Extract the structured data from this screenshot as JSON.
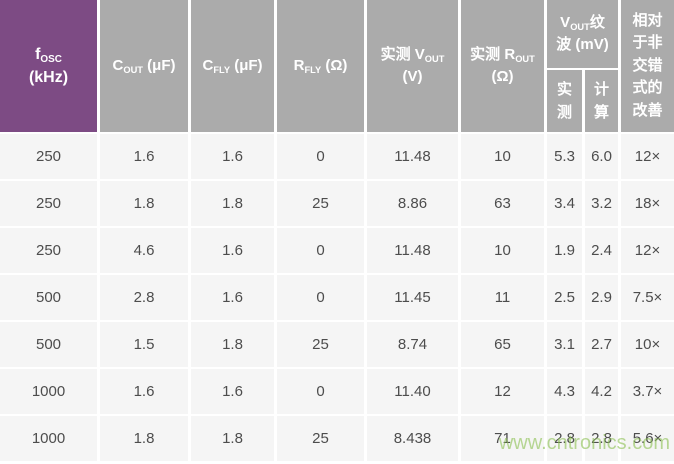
{
  "table": {
    "header": {
      "col_fosc": {
        "symbol": "f",
        "subscript": "OSC",
        "line2": "(kHz)"
      },
      "col_cout": {
        "symbol": "C",
        "subscript": "OUT",
        "unit": " (μF)"
      },
      "col_cfly": {
        "symbol": "C",
        "subscript": "FLY",
        "unit": " (μF)"
      },
      "col_rfly": {
        "symbol": "R",
        "subscript": "FLY",
        "unit": " (Ω)"
      },
      "col_vout": {
        "prefix": "实测 ",
        "symbol": "V",
        "subscript": "OUT",
        "line2": "(V)"
      },
      "col_rout": {
        "prefix": "实测 ",
        "symbol": "R",
        "subscript": "OUT",
        "line2": "(Ω)"
      },
      "col_ripple": {
        "symbol": "V",
        "subscript": "OUT",
        "line1_suffix": "纹",
        "line2": "波 (mV)"
      },
      "sub_measured": "实测",
      "sub_calculated": "计算",
      "col_improvement": "相对于非交错式的改善"
    },
    "rows": [
      [
        "250",
        "1.6",
        "1.6",
        "0",
        "11.48",
        "10",
        "5.3",
        "6.0",
        "12×"
      ],
      [
        "250",
        "1.8",
        "1.8",
        "25",
        "8.86",
        "63",
        "3.4",
        "3.2",
        "18×"
      ],
      [
        "250",
        "4.6",
        "1.6",
        "0",
        "11.48",
        "10",
        "1.9",
        "2.4",
        "12×"
      ],
      [
        "500",
        "2.8",
        "1.6",
        "0",
        "11.45",
        "11",
        "2.5",
        "2.9",
        "7.5×"
      ],
      [
        "500",
        "1.5",
        "1.8",
        "25",
        "8.74",
        "65",
        "3.1",
        "2.7",
        "10×"
      ],
      [
        "1000",
        "1.6",
        "1.6",
        "0",
        "11.40",
        "12",
        "4.3",
        "4.2",
        "3.7×"
      ],
      [
        "1000",
        "1.8",
        "1.8",
        "25",
        "8.438",
        "71",
        "2.8",
        "2.8",
        "5.6×"
      ]
    ]
  },
  "watermark": "www.cntronics.com",
  "colors": {
    "accent_purple": "#7d4b84",
    "header_gray": "#ababab",
    "row_bg": "#f5f5f5",
    "body_text": "#4d4d4d",
    "watermark_green": "#8cc152"
  },
  "chart_data": {
    "type": "table",
    "title": "",
    "columns": [
      "fOSC (kHz)",
      "COUT (μF)",
      "CFLY (μF)",
      "RFLY (Ω)",
      "实测 VOUT (V)",
      "实测 ROUT (Ω)",
      "VOUT纹波 (mV) 实测",
      "VOUT纹波 (mV) 计算",
      "相对于非交错式的改善"
    ],
    "rows": [
      [
        250,
        1.6,
        1.6,
        0,
        11.48,
        10,
        5.3,
        6.0,
        "12×"
      ],
      [
        250,
        1.8,
        1.8,
        25,
        8.86,
        63,
        3.4,
        3.2,
        "18×"
      ],
      [
        250,
        4.6,
        1.6,
        0,
        11.48,
        10,
        1.9,
        2.4,
        "12×"
      ],
      [
        500,
        2.8,
        1.6,
        0,
        11.45,
        11,
        2.5,
        2.9,
        "7.5×"
      ],
      [
        500,
        1.5,
        1.8,
        25,
        8.74,
        65,
        3.1,
        2.7,
        "10×"
      ],
      [
        1000,
        1.6,
        1.6,
        0,
        11.4,
        12,
        4.3,
        4.2,
        "3.7×"
      ],
      [
        1000,
        1.8,
        1.8,
        25,
        8.438,
        71,
        2.8,
        2.8,
        "5.6×"
      ]
    ]
  }
}
